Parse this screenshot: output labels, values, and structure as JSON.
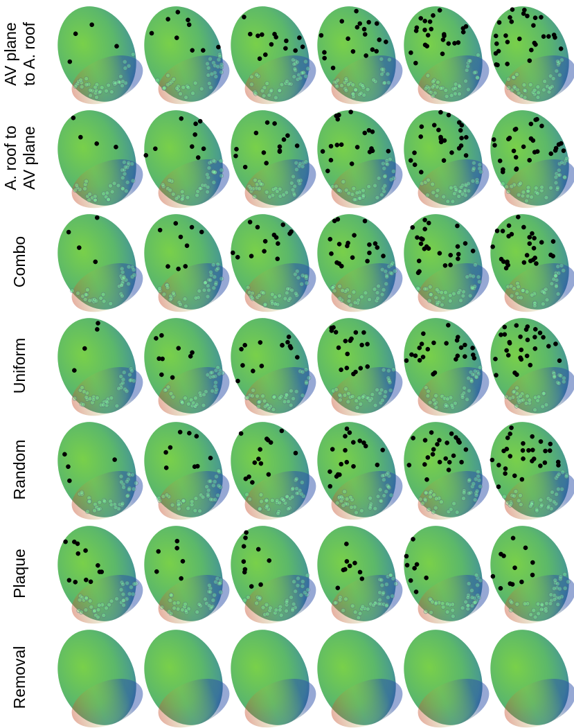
{
  "rows": [
    {
      "label_lines": [
        "AV plane",
        "to A. roof"
      ]
    },
    {
      "label_lines": [
        "A. roof to",
        "AV plane"
      ]
    },
    {
      "label_lines": [
        "Combo"
      ]
    },
    {
      "label_lines": [
        "Uniform"
      ]
    },
    {
      "label_lines": [
        "Random"
      ]
    },
    {
      "label_lines": [
        "Plaque"
      ]
    },
    {
      "label_lines": [
        "Removal"
      ]
    }
  ]
}
